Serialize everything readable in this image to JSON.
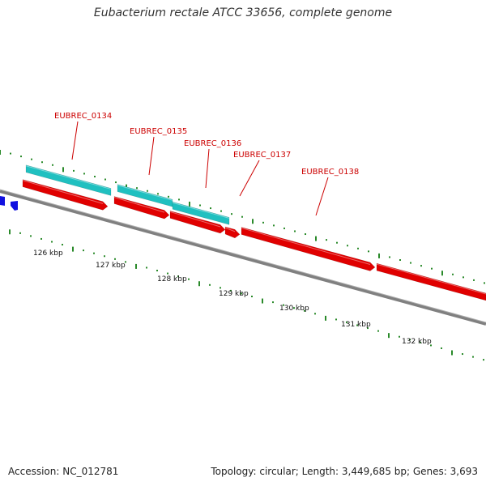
{
  "title": "Eubacterium rectale ATCC 33656, complete genome",
  "footer": {
    "accession": "Accession: NC_012781",
    "stats": "Topology: circular; Length: 3,449,685 bp; Genes: 3,693"
  },
  "colors": {
    "tick": "#2a8a2a",
    "backbone": "#808080",
    "gene_forward": "#e00000",
    "gene_cyan": "#20c0c0",
    "gene_blue": "#1010e0",
    "label": "#cc0000"
  },
  "gene_labels": [
    "EUBREC_0134",
    "EUBREC_0135",
    "EUBREC_0136",
    "EUBREC_0137",
    "EUBREC_0138"
  ],
  "kbp_labels": [
    "126 kbp",
    "127 kbp",
    "128 kbp",
    "129 kbp",
    "130 kbp",
    "131 kbp",
    "132 kbp"
  ]
}
